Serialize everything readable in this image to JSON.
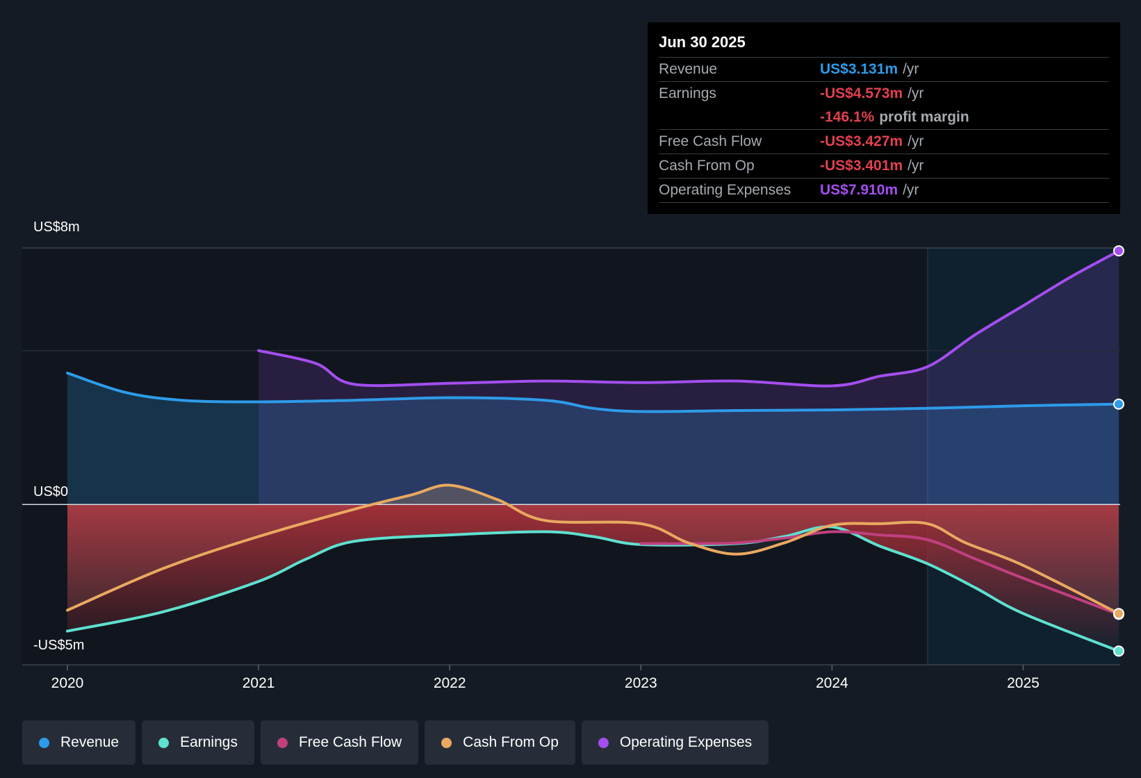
{
  "chart_data": {
    "type": "area",
    "x_ticks": [
      "2020",
      "2021",
      "2022",
      "2023",
      "2024",
      "2025"
    ],
    "y_labels": {
      "top": "US$8m",
      "zero": "US$0",
      "bottom": "-US$5m"
    },
    "ylim": [
      -5,
      8
    ],
    "xlim": [
      2020.0,
      2025.5
    ],
    "highlight_start": 2024.5,
    "series": [
      {
        "name": "Operating Expenses",
        "color": "#a44ef0",
        "points": [
          [
            2021.0,
            4.8
          ],
          [
            2021.3,
            4.4
          ],
          [
            2021.5,
            3.75
          ],
          [
            2022.0,
            3.78
          ],
          [
            2022.5,
            3.85
          ],
          [
            2023.0,
            3.8
          ],
          [
            2023.5,
            3.85
          ],
          [
            2024.0,
            3.7
          ],
          [
            2024.25,
            4.0
          ],
          [
            2024.5,
            4.3
          ],
          [
            2024.75,
            5.3
          ],
          [
            2025.0,
            6.2
          ],
          [
            2025.25,
            7.1
          ],
          [
            2025.5,
            7.91
          ]
        ]
      },
      {
        "name": "Revenue",
        "color": "#2e9be9",
        "points": [
          [
            2020.0,
            4.1
          ],
          [
            2020.3,
            3.5
          ],
          [
            2020.6,
            3.25
          ],
          [
            2021.0,
            3.2
          ],
          [
            2021.5,
            3.25
          ],
          [
            2022.0,
            3.33
          ],
          [
            2022.5,
            3.25
          ],
          [
            2022.75,
            3.0
          ],
          [
            2023.0,
            2.9
          ],
          [
            2023.5,
            2.93
          ],
          [
            2024.0,
            2.95
          ],
          [
            2024.5,
            3.0
          ],
          [
            2025.0,
            3.08
          ],
          [
            2025.5,
            3.131
          ]
        ]
      },
      {
        "name": "Cash From Op",
        "color": "#e9a95f",
        "points": [
          [
            2020.0,
            -3.3
          ],
          [
            2020.5,
            -2.0
          ],
          [
            2021.0,
            -1.0
          ],
          [
            2021.5,
            -0.15
          ],
          [
            2021.8,
            0.3
          ],
          [
            2022.0,
            0.6
          ],
          [
            2022.25,
            0.15
          ],
          [
            2022.5,
            -0.5
          ],
          [
            2023.0,
            -0.6
          ],
          [
            2023.25,
            -1.2
          ],
          [
            2023.5,
            -1.55
          ],
          [
            2023.75,
            -1.2
          ],
          [
            2024.0,
            -0.65
          ],
          [
            2024.25,
            -0.6
          ],
          [
            2024.5,
            -0.6
          ],
          [
            2024.7,
            -1.2
          ],
          [
            2025.0,
            -1.9
          ],
          [
            2025.5,
            -3.401
          ]
        ]
      },
      {
        "name": "Free Cash Flow",
        "color": "#c0407f",
        "points": [
          [
            2023.0,
            -1.22
          ],
          [
            2023.25,
            -1.22
          ],
          [
            2023.5,
            -1.2
          ],
          [
            2023.75,
            -1.05
          ],
          [
            2024.0,
            -0.85
          ],
          [
            2024.25,
            -0.95
          ],
          [
            2024.5,
            -1.1
          ],
          [
            2024.75,
            -1.7
          ],
          [
            2025.0,
            -2.3
          ],
          [
            2025.5,
            -3.427
          ]
        ]
      },
      {
        "name": "Earnings",
        "color": "#5fe0d0",
        "points": [
          [
            2020.0,
            -3.95
          ],
          [
            2020.5,
            -3.35
          ],
          [
            2021.0,
            -2.4
          ],
          [
            2021.25,
            -1.7
          ],
          [
            2021.5,
            -1.15
          ],
          [
            2022.0,
            -0.95
          ],
          [
            2022.5,
            -0.85
          ],
          [
            2022.75,
            -1.0
          ],
          [
            2023.0,
            -1.25
          ],
          [
            2023.5,
            -1.22
          ],
          [
            2023.75,
            -1.0
          ],
          [
            2024.0,
            -0.7
          ],
          [
            2024.25,
            -1.3
          ],
          [
            2024.5,
            -1.85
          ],
          [
            2024.75,
            -2.6
          ],
          [
            2025.0,
            -3.4
          ],
          [
            2025.5,
            -4.573
          ]
        ]
      }
    ]
  },
  "tooltip": {
    "date": "Jun 30 2025",
    "revenue_label": "Revenue",
    "revenue_value": "US$3.131m",
    "revenue_unit": "/yr",
    "earnings_label": "Earnings",
    "earnings_value": "-US$4.573m",
    "earnings_unit": "/yr",
    "margin_value": "-146.1%",
    "margin_text": "profit margin",
    "fcf_label": "Free Cash Flow",
    "fcf_value": "-US$3.427m",
    "fcf_unit": "/yr",
    "cfo_label": "Cash From Op",
    "cfo_value": "-US$3.401m",
    "cfo_unit": "/yr",
    "opex_label": "Operating Expenses",
    "opex_value": "US$7.910m",
    "opex_unit": "/yr"
  },
  "colors": {
    "revenue": "#2e9be9",
    "earnings": "#5fe0d0",
    "fcf": "#c0407f",
    "cfo": "#e9a95f",
    "opex": "#a44ef0",
    "negative": "#e2414f"
  },
  "legend": [
    {
      "label": "Revenue",
      "color": "#2e9be9"
    },
    {
      "label": "Earnings",
      "color": "#5fe0d0"
    },
    {
      "label": "Free Cash Flow",
      "color": "#c0407f"
    },
    {
      "label": "Cash From Op",
      "color": "#e9a95f"
    },
    {
      "label": "Operating Expenses",
      "color": "#a44ef0"
    }
  ]
}
